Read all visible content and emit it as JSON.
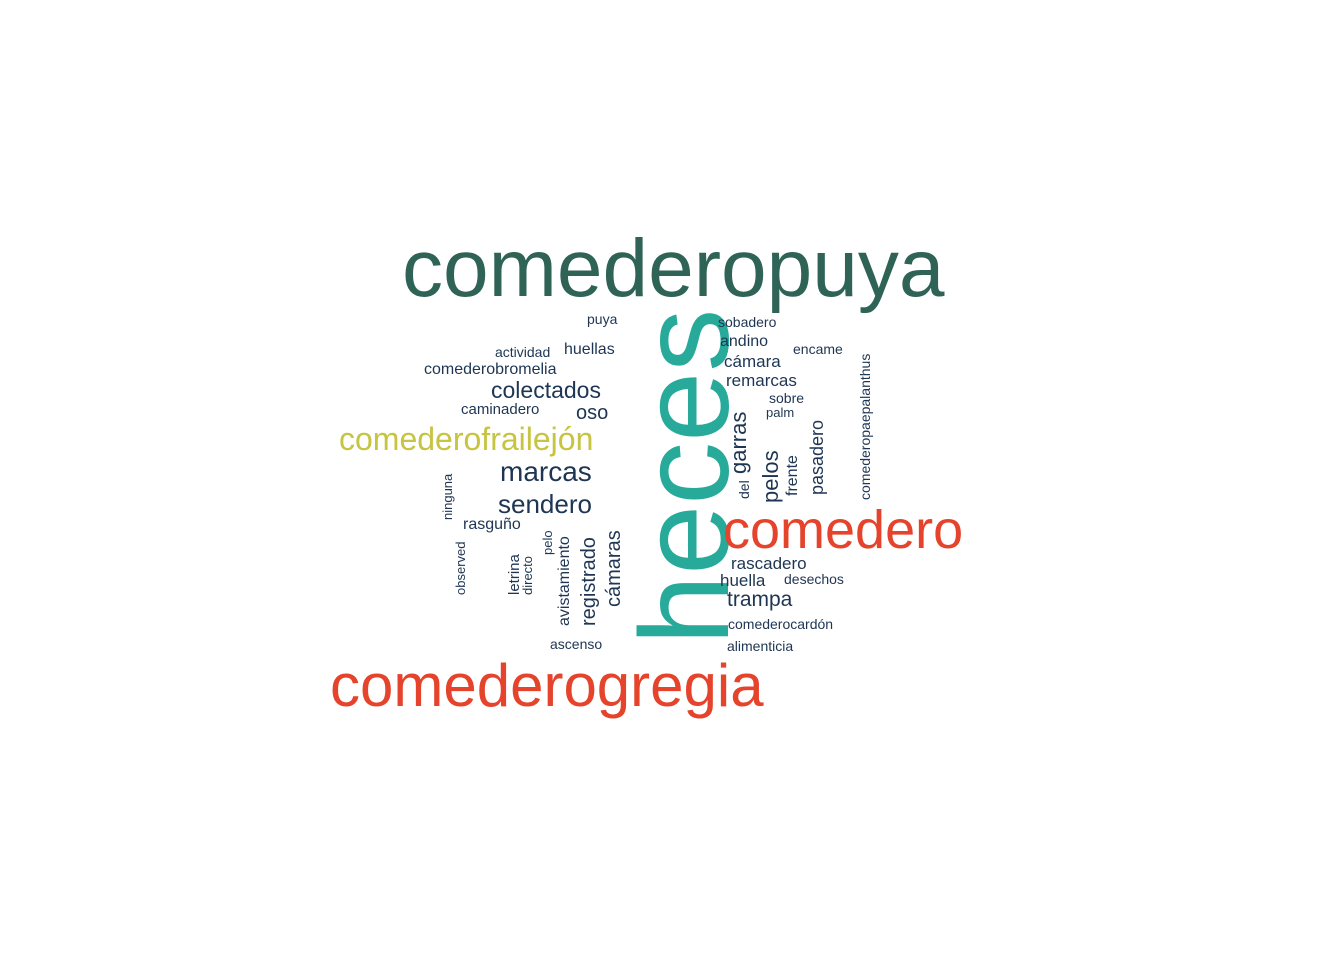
{
  "palette": {
    "dark_green": "#2e6356",
    "teal": "#27aa9a",
    "red": "#e5432b",
    "olive": "#c6c441",
    "navy": "#1e3553"
  },
  "words": [
    {
      "text": "comederopuya",
      "color": "#2e6356"
    },
    {
      "text": "heces",
      "color": "#27aa9a"
    },
    {
      "text": "comederogregia",
      "color": "#e5432b"
    },
    {
      "text": "comedero",
      "color": "#e5432b"
    },
    {
      "text": "comederofrailejón",
      "color": "#c6c441"
    },
    {
      "text": "marcas",
      "color": "#1e3553"
    },
    {
      "text": "sendero",
      "color": "#1e3553"
    },
    {
      "text": "colectados",
      "color": "#1e3553"
    },
    {
      "text": "oso",
      "color": "#1e3553"
    },
    {
      "text": "huellas",
      "color": "#1e3553"
    },
    {
      "text": "actividad",
      "color": "#1e3553"
    },
    {
      "text": "puya",
      "color": "#1e3553"
    },
    {
      "text": "comederobromelia",
      "color": "#1e3553"
    },
    {
      "text": "caminadero",
      "color": "#1e3553"
    },
    {
      "text": "rasguño",
      "color": "#1e3553"
    },
    {
      "text": "ninguna",
      "color": "#1e3553"
    },
    {
      "text": "observed",
      "color": "#1e3553"
    },
    {
      "text": "letrina",
      "color": "#1e3553"
    },
    {
      "text": "directo",
      "color": "#1e3553"
    },
    {
      "text": "pelo",
      "color": "#1e3553"
    },
    {
      "text": "avistamiento",
      "color": "#1e3553"
    },
    {
      "text": "registrado",
      "color": "#1e3553"
    },
    {
      "text": "cámaras",
      "color": "#1e3553"
    },
    {
      "text": "ascenso",
      "color": "#1e3553"
    },
    {
      "text": "sobadero",
      "color": "#1e3553"
    },
    {
      "text": "andino",
      "color": "#1e3553"
    },
    {
      "text": "cámara",
      "color": "#1e3553"
    },
    {
      "text": "remarcas",
      "color": "#1e3553"
    },
    {
      "text": "encame",
      "color": "#1e3553"
    },
    {
      "text": "sobre",
      "color": "#1e3553"
    },
    {
      "text": "palm",
      "color": "#1e3553"
    },
    {
      "text": "garras",
      "color": "#1e3553"
    },
    {
      "text": "del",
      "color": "#1e3553"
    },
    {
      "text": "pelos",
      "color": "#1e3553"
    },
    {
      "text": "frente",
      "color": "#1e3553"
    },
    {
      "text": "pasadero",
      "color": "#1e3553"
    },
    {
      "text": "comederopaepalanthus",
      "color": "#1e3553"
    },
    {
      "text": "rascadero",
      "color": "#1e3553"
    },
    {
      "text": "huella",
      "color": "#1e3553"
    },
    {
      "text": "desechos",
      "color": "#1e3553"
    },
    {
      "text": "trampa",
      "color": "#1e3553"
    },
    {
      "text": "comederocardón",
      "color": "#1e3553"
    },
    {
      "text": "alimenticia",
      "color": "#1e3553"
    }
  ]
}
